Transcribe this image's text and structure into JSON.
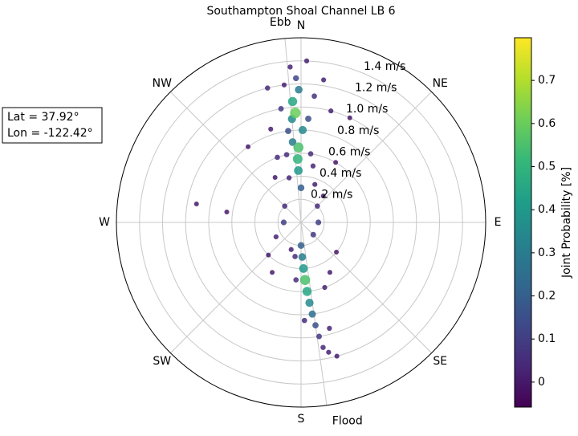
{
  "chart_data": {
    "type": "polar-scatter",
    "title": "Southampton Shoal Channel LB 6",
    "x": [
      240,
      270,
      45,
      315,
      135,
      90,
      280,
      278,
      325,
      330,
      30,
      40,
      25,
      210,
      225,
      130,
      150,
      200,
      340,
      345,
      20,
      12,
      15,
      353,
      342,
      346,
      348,
      8,
      6,
      9,
      2,
      358,
      356,
      350,
      352,
      160,
      165,
      165,
      168,
      170,
      171,
      190,
      185,
      178,
      172,
      173,
      0,
      180,
      4,
      1,
      354,
      355,
      359,
      357,
      174,
      178,
      177,
      175,
      176,
      357,
      356,
      358,
      357
    ],
    "values": [
      0.25,
      0.15,
      0.2,
      0.2,
      0.15,
      0.15,
      0.92,
      0.65,
      0.8,
      0.45,
      0.6,
      0.3,
      1.0,
      0.5,
      0.4,
      0.4,
      0.5,
      0.25,
      0.6,
      0.4,
      0.35,
      0.5,
      1.0,
      1.2,
      0.85,
      1.2,
      0.6,
      0.6,
      1.1,
      1.25,
      1.4,
      1.25,
      1.35,
      1.0,
      0.8,
      0.6,
      0.95,
      1.2,
      1.15,
      1.1,
      1.0,
      0.3,
      0.5,
      0.85,
      0.9,
      0.8,
      0.3,
      0.2,
      0.9,
      0.8,
      0.7,
      0.9,
      1.15,
      0.55,
      0.7,
      0.3,
      0.4,
      0.6,
      0.5,
      0.45,
      1.05,
      0.65,
      0.95
    ],
    "color_values": [
      0.02,
      0.1,
      0.05,
      0.05,
      0.08,
      0.1,
      0.0,
      0.0,
      0.0,
      0.0,
      0.0,
      0.0,
      0.0,
      0.0,
      0.0,
      0.0,
      0.01,
      0.02,
      0.05,
      0.03,
      0.02,
      0.03,
      0.02,
      0.01,
      0.01,
      0.04,
      0.05,
      0.05,
      0.06,
      0.02,
      0.02,
      0.12,
      0.03,
      0.08,
      0.15,
      0.02,
      0.03,
      0.01,
      0.02,
      0.04,
      0.08,
      0.05,
      0.05,
      0.05,
      0.15,
      0.25,
      0.2,
      0.2,
      0.15,
      0.35,
      0.3,
      0.35,
      0.3,
      0.5,
      0.35,
      0.3,
      0.4,
      0.45,
      0.55,
      0.4,
      0.45,
      0.55,
      0.6
    ],
    "xlim": [
      0,
      360
    ],
    "xticks": [
      {
        "value": 0,
        "label": "N"
      },
      {
        "value": 45,
        "label": "NE"
      },
      {
        "value": 90,
        "label": "E"
      },
      {
        "value": 135,
        "label": "SE"
      },
      {
        "value": 180,
        "label": "S"
      },
      {
        "value": 225,
        "label": "SW"
      },
      {
        "value": 270,
        "label": "W"
      },
      {
        "value": 315,
        "label": "NW"
      }
    ],
    "ylim": [
      0,
      1.6
    ],
    "yticks": [
      {
        "value": 0.2,
        "label": "0.2 m/s"
      },
      {
        "value": 0.4,
        "label": "0.4 m/s"
      },
      {
        "value": 0.6,
        "label": "0.6 m/s"
      },
      {
        "value": 0.8,
        "label": "0.8 m/s"
      },
      {
        "value": 1.0,
        "label": "1.0 m/s"
      },
      {
        "value": 1.2,
        "label": "1.2 m/s"
      },
      {
        "value": 1.4,
        "label": "1.4 m/s"
      }
    ],
    "annotations": [
      {
        "text": "Ebb",
        "theta": 355
      },
      {
        "text": "Flood",
        "theta": 172
      }
    ],
    "info_box": [
      "Lat = 37.92°",
      "Lon = -122.42°"
    ],
    "colorbar": {
      "label": "Joint Probability [%]",
      "colormap": "viridis",
      "clim": [
        -0.058,
        0.799
      ],
      "ticks": [
        0.0,
        0.1,
        0.2,
        0.3,
        0.4,
        0.5,
        0.6,
        0.7
      ]
    },
    "grid": true
  }
}
